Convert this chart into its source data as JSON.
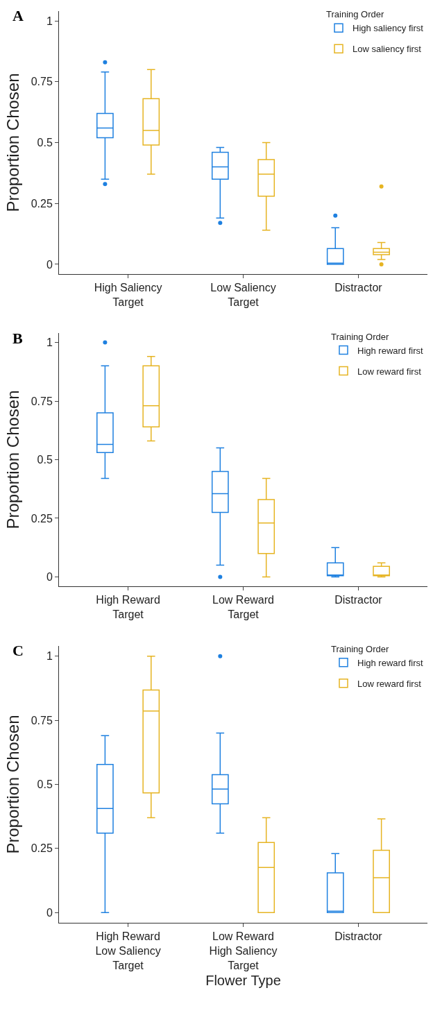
{
  "chart_data": [
    {
      "type": "box",
      "annotations": [
        "A"
      ],
      "ylabel": "Proportion Chosen",
      "legend_title": "Training Order",
      "legend": "top right",
      "grid": false,
      "categories": [
        "High Saliency\nTarget",
        "Low Saliency\nTarget",
        "Distractor"
      ],
      "ylim": [
        -0.04,
        1.04
      ],
      "yticks": [
        0,
        0.25,
        0.5,
        0.75,
        1
      ],
      "series": [
        {
          "name": "High saliency first",
          "color": "#1e80e0",
          "boxes": [
            {
              "low": 0.35,
              "q1": 0.52,
              "median": 0.56,
              "q3": 0.62,
              "high": 0.79,
              "outliers": [
                0.33,
                0.83
              ]
            },
            {
              "low": 0.19,
              "q1": 0.35,
              "median": 0.4,
              "q3": 0.46,
              "high": 0.48,
              "outliers": [
                0.17
              ]
            },
            {
              "low": 0,
              "q1": 0,
              "median": 0.005,
              "q3": 0.065,
              "high": 0.15,
              "outliers": [
                0.2
              ]
            }
          ]
        },
        {
          "name": "Low saliency first",
          "color": "#e6b422",
          "boxes": [
            {
              "low": 0.37,
              "q1": 0.49,
              "median": 0.55,
              "q3": 0.68,
              "high": 0.8
            },
            {
              "low": 0.14,
              "q1": 0.28,
              "median": 0.37,
              "q3": 0.43,
              "high": 0.5
            },
            {
              "low": 0.02,
              "q1": 0.04,
              "median": 0.05,
              "q3": 0.065,
              "high": 0.09,
              "outliers": [
                0,
                0.32
              ]
            }
          ]
        }
      ]
    },
    {
      "type": "box",
      "annotations": [
        "B"
      ],
      "ylabel": "Proportion Chosen",
      "legend_title": "Training Order",
      "legend": "top right",
      "grid": false,
      "categories": [
        "High Reward\nTarget",
        "Low Reward\nTarget",
        "Distractor"
      ],
      "ylim": [
        -0.04,
        1.04
      ],
      "yticks": [
        0,
        0.25,
        0.5,
        0.75,
        1
      ],
      "series": [
        {
          "name": "High reward first",
          "color": "#1e80e0",
          "boxes": [
            {
              "low": 0.42,
              "q1": 0.53,
              "median": 0.565,
              "q3": 0.7,
              "high": 0.9,
              "outliers": [
                1
              ]
            },
            {
              "low": 0.05,
              "q1": 0.275,
              "median": 0.355,
              "q3": 0.45,
              "high": 0.55,
              "outliers": [
                0
              ]
            },
            {
              "low": 0,
              "q1": 0.005,
              "median": 0.005,
              "q3": 0.06,
              "high": 0.125
            }
          ]
        },
        {
          "name": "Low reward first",
          "color": "#e6b422",
          "boxes": [
            {
              "low": 0.58,
              "q1": 0.64,
              "median": 0.73,
              "q3": 0.9,
              "high": 0.94
            },
            {
              "low": 0,
              "q1": 0.1,
              "median": 0.23,
              "q3": 0.33,
              "high": 0.42
            },
            {
              "low": 0,
              "q1": 0.005,
              "median": 0.005,
              "q3": 0.045,
              "high": 0.06
            }
          ]
        }
      ]
    },
    {
      "type": "box",
      "annotations": [
        "C"
      ],
      "xlabel": "Flower Type",
      "ylabel": "Proportion Chosen",
      "legend_title": "Training Order",
      "legend": "top right",
      "grid": false,
      "categories": [
        "High Reward\nLow Saliency\nTarget",
        "Low Reward\nHigh Saliency\nTarget",
        "Distractor"
      ],
      "ylim": [
        -0.04,
        1.04
      ],
      "yticks": [
        0,
        0.25,
        0.5,
        0.75,
        1
      ],
      "series": [
        {
          "name": "High reward first",
          "color": "#1e80e0",
          "boxes": [
            {
              "low": 0,
              "q1": 0.31,
              "median": 0.406,
              "q3": 0.578,
              "high": 0.69
            },
            {
              "low": 0.31,
              "q1": 0.424,
              "median": 0.482,
              "q3": 0.538,
              "high": 0.7,
              "outliers": [
                1
              ]
            },
            {
              "low": 0,
              "q1": 0,
              "median": 0.005,
              "q3": 0.155,
              "high": 0.23
            }
          ]
        },
        {
          "name": "Low reward first",
          "color": "#e6b422",
          "boxes": [
            {
              "low": 0.37,
              "q1": 0.467,
              "median": 0.786,
              "q3": 0.868,
              "high": 1
            },
            {
              "low": 0,
              "q1": 0,
              "median": 0.176,
              "q3": 0.273,
              "high": 0.37
            },
            {
              "low": 0,
              "q1": 0,
              "median": 0.136,
              "q3": 0.243,
              "high": 0.365
            }
          ]
        }
      ]
    }
  ]
}
